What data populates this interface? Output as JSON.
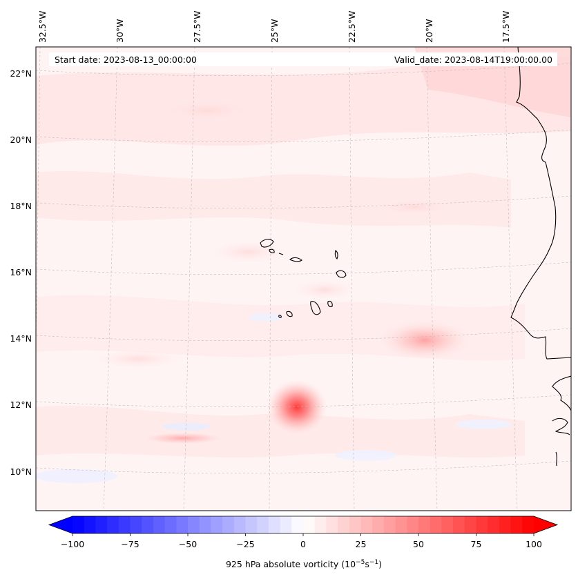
{
  "map": {
    "start_date": "Start date: 2023-08-13_00:00:00",
    "valid_date": "Valid_date: 2023-08-14T19:00:00.00",
    "lon_labels": [
      "32.5°W",
      "30°W",
      "27.5°W",
      "25°W",
      "22.5°W",
      "20°W",
      "17.5°W"
    ],
    "lat_labels": [
      "22°N",
      "20°N",
      "18°N",
      "16°N",
      "14°N",
      "12°N",
      "10°N"
    ]
  },
  "colorbar": {
    "ticks": [
      "−100",
      "−75",
      "−50",
      "−25",
      "0",
      "25",
      "50",
      "75",
      "100"
    ],
    "min": -100,
    "max": 100,
    "label_prefix": "925 hPa absolute vorticity (10",
    "label_exp1": "−5",
    "label_mid": "s",
    "label_exp2": "−1",
    "label_suffix": ")",
    "negative_color": "#0000ff",
    "positive_color": "#ff0000"
  },
  "vorticity_features": [
    {
      "name": "vortex-12n-24w",
      "value": 85
    },
    {
      "name": "vortex-14n-20w",
      "value": 45
    },
    {
      "name": "streak-11n-27w",
      "value": 30
    }
  ]
}
